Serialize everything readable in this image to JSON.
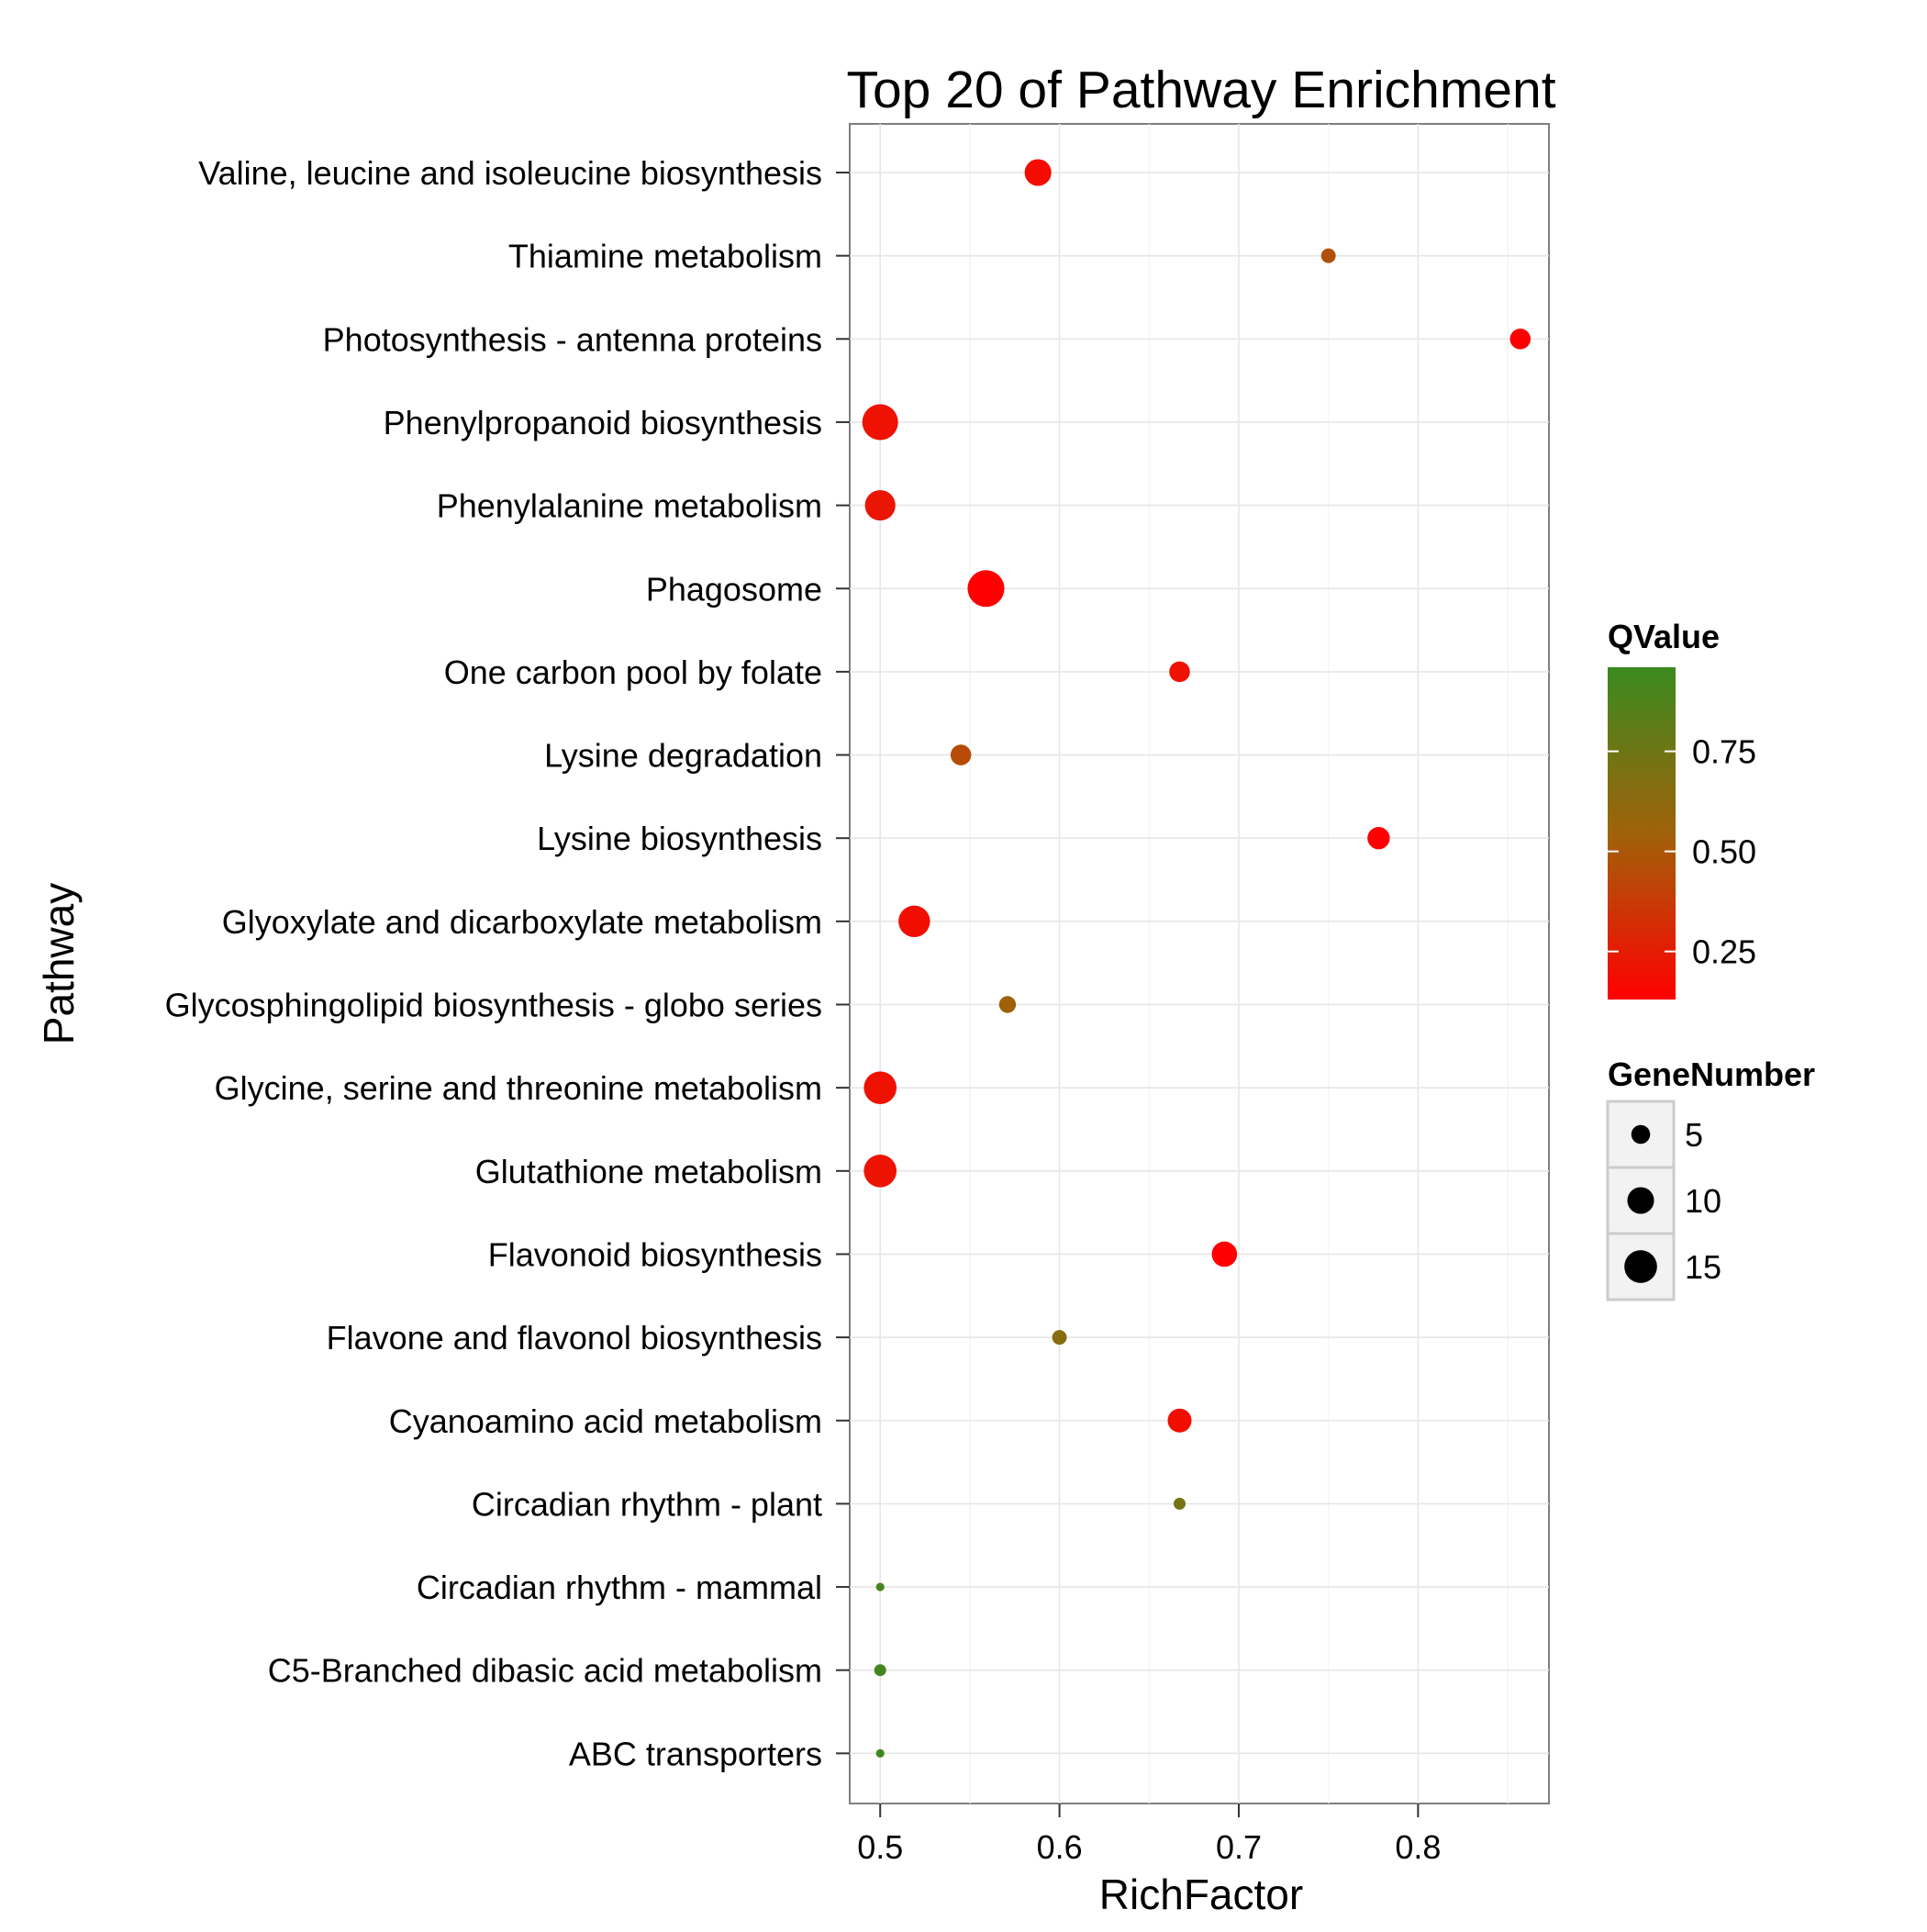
{
  "chart_data": {
    "type": "scatter",
    "title": "Top 20 of Pathway Enrichment",
    "xlabel": "RichFactor",
    "ylabel": "Pathway",
    "xlim": [
      0.483,
      0.873
    ],
    "x_ticks": [
      0.5,
      0.6,
      0.7,
      0.8
    ],
    "x_tick_labels": [
      "0.5",
      "0.6",
      "0.7",
      "0.8"
    ],
    "grid": true,
    "categories": [
      "Valine, leucine and isoleucine biosynthesis",
      "Thiamine metabolism",
      "Photosynthesis - antenna proteins",
      "Phenylpropanoid biosynthesis",
      "Phenylalanine metabolism",
      "Phagosome",
      "One carbon pool by folate",
      "Lysine degradation",
      "Lysine biosynthesis",
      "Glyoxylate and dicarboxylate metabolism",
      "Glycosphingolipid biosynthesis - globo series",
      "Glycine, serine and threonine metabolism",
      "Glutathione metabolism",
      "Flavonoid biosynthesis",
      "Flavone and flavonol biosynthesis",
      "Cyanoamino acid metabolism",
      "Circadian rhythm - plant",
      "Circadian rhythm - mammal",
      "C5-Branched dibasic acid metabolism",
      "ABC transporters"
    ],
    "points": [
      {
        "pathway": "Valine, leucine and isoleucine biosynthesis",
        "richfactor": 0.588,
        "qvalue": 0.18,
        "genes": 10
      },
      {
        "pathway": "Thiamine metabolism",
        "richfactor": 0.75,
        "qvalue": 0.47,
        "genes": 3
      },
      {
        "pathway": "Photosynthesis - antenna proteins",
        "richfactor": 0.857,
        "qvalue": 0.12,
        "genes": 6
      },
      {
        "pathway": "Phenylpropanoid biosynthesis",
        "richfactor": 0.5,
        "qvalue": 0.2,
        "genes": 18
      },
      {
        "pathway": "Phenylalanine metabolism",
        "richfactor": 0.5,
        "qvalue": 0.22,
        "genes": 13
      },
      {
        "pathway": "Phagosome",
        "richfactor": 0.559,
        "qvalue": 0.13,
        "genes": 19
      },
      {
        "pathway": "One carbon pool by folate",
        "richfactor": 0.667,
        "qvalue": 0.2,
        "genes": 6
      },
      {
        "pathway": "Lysine degradation",
        "richfactor": 0.545,
        "qvalue": 0.45,
        "genes": 6
      },
      {
        "pathway": "Lysine biosynthesis",
        "richfactor": 0.778,
        "qvalue": 0.13,
        "genes": 7
      },
      {
        "pathway": "Glyoxylate and dicarboxylate metabolism",
        "richfactor": 0.519,
        "qvalue": 0.19,
        "genes": 14
      },
      {
        "pathway": "Glycosphingolipid biosynthesis - globo series",
        "richfactor": 0.571,
        "qvalue": 0.55,
        "genes": 4
      },
      {
        "pathway": "Glycine, serine and threonine metabolism",
        "richfactor": 0.5,
        "qvalue": 0.2,
        "genes": 15
      },
      {
        "pathway": "Glutathione metabolism",
        "richfactor": 0.5,
        "qvalue": 0.21,
        "genes": 15
      },
      {
        "pathway": "Flavonoid biosynthesis",
        "richfactor": 0.692,
        "qvalue": 0.13,
        "genes": 9
      },
      {
        "pathway": "Flavone and flavonol biosynthesis",
        "richfactor": 0.6,
        "qvalue": 0.65,
        "genes": 3
      },
      {
        "pathway": "Cyanoamino acid metabolism",
        "richfactor": 0.667,
        "qvalue": 0.19,
        "genes": 8
      },
      {
        "pathway": "Circadian rhythm - plant",
        "richfactor": 0.667,
        "qvalue": 0.72,
        "genes": 2
      },
      {
        "pathway": "Circadian rhythm - mammal",
        "richfactor": 0.5,
        "qvalue": 0.9,
        "genes": 1
      },
      {
        "pathway": "C5-Branched dibasic acid metabolism",
        "richfactor": 0.5,
        "qvalue": 0.92,
        "genes": 2
      },
      {
        "pathway": "ABC transporters",
        "richfactor": 0.5,
        "qvalue": 0.93,
        "genes": 1
      }
    ],
    "legend_color": {
      "title": "QValue",
      "range": [
        0.13,
        0.96
      ],
      "ticks": [
        0.25,
        0.5,
        0.75
      ],
      "tick_labels": [
        "0.25",
        "0.50",
        "0.75"
      ],
      "low_color": "#ff0000",
      "mid_color": "#a0620a",
      "high_color": "#3a8a1f"
    },
    "legend_size": {
      "title": "GeneNumber",
      "values": [
        5,
        10,
        15
      ],
      "labels": [
        "5",
        "10",
        "15"
      ]
    },
    "legend_placement": "right"
  }
}
